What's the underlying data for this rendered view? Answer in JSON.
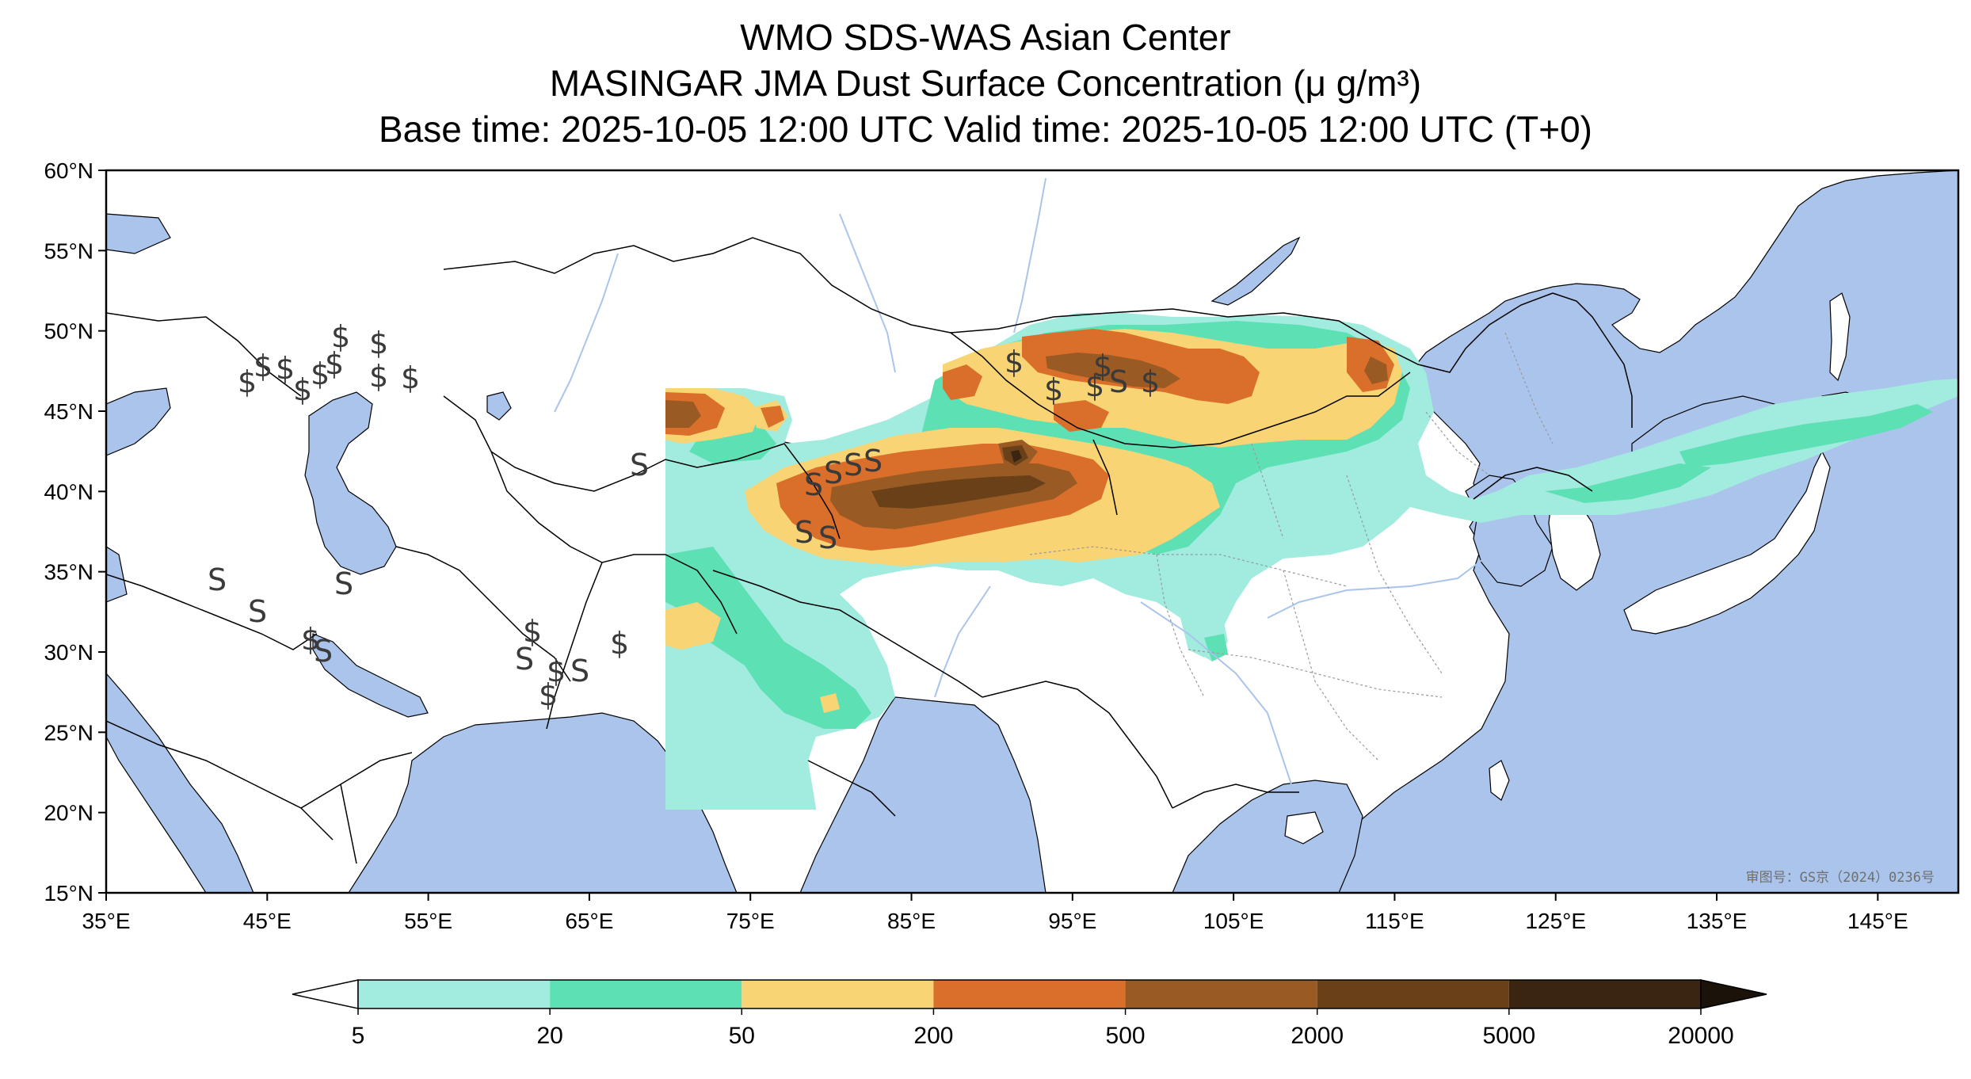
{
  "titles": {
    "line1": "WMO SDS-WAS Asian Center",
    "line2": "MASINGAR JMA Dust Surface Concentration (μ g/m³)",
    "line3": "Base time: 2025-10-05 12:00 UTC Valid time: 2025-10-05 12:00 UTC (T+0)"
  },
  "map": {
    "lon_range": [
      35,
      150
    ],
    "lat_range": [
      15,
      60
    ],
    "lon_ticks": [
      "35°E",
      "45°E",
      "55°E",
      "65°E",
      "75°E",
      "85°E",
      "95°E",
      "105°E",
      "115°E",
      "125°E",
      "135°E",
      "145°E"
    ],
    "lat_ticks": [
      "60°N",
      "55°N",
      "50°N",
      "45°N",
      "40°N",
      "35°N",
      "30°N",
      "25°N",
      "20°N",
      "15°N"
    ],
    "lon_tick_values": [
      35,
      45,
      55,
      65,
      75,
      85,
      95,
      105,
      115,
      125,
      135,
      145
    ],
    "lat_tick_values": [
      60,
      55,
      50,
      45,
      40,
      35,
      30,
      25,
      20,
      15
    ],
    "approval_stamp": "审图号：GS京（2024）0236号",
    "colors": {
      "ocean": "#aac4ec",
      "land": "#ffffff",
      "river": "#aac4ec",
      "border": "#000000"
    }
  },
  "colorbar": {
    "levels": [
      "5",
      "20",
      "50",
      "200",
      "500",
      "2000",
      "5000",
      "20000"
    ],
    "colors": [
      "#a1ebdf",
      "#5ee0b5",
      "#f8d474",
      "#da6f2c",
      "#9a5a24",
      "#6a4019",
      "#3a2511"
    ],
    "extend": "both",
    "under_color": "#ffffff",
    "over_color": "#1b120a"
  }
}
